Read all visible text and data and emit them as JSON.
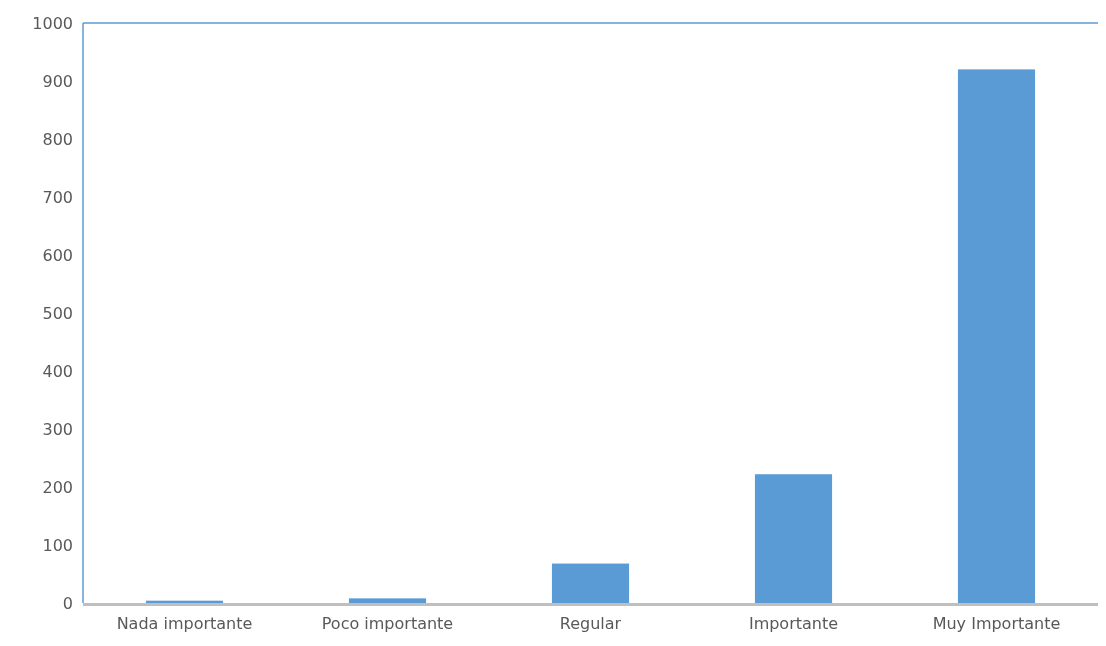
{
  "chart_data": {
    "type": "bar",
    "categories": [
      "Nada importante",
      "Poco importante",
      "Regular",
      "Importante",
      "Muy Importante"
    ],
    "values": [
      4,
      8,
      68,
      222,
      920
    ],
    "color": "#5b9bd5",
    "ylim": [
      0,
      1000
    ],
    "yticks": [
      0,
      100,
      200,
      300,
      400,
      500,
      600,
      700,
      800,
      900,
      1000
    ],
    "grid": false
  }
}
